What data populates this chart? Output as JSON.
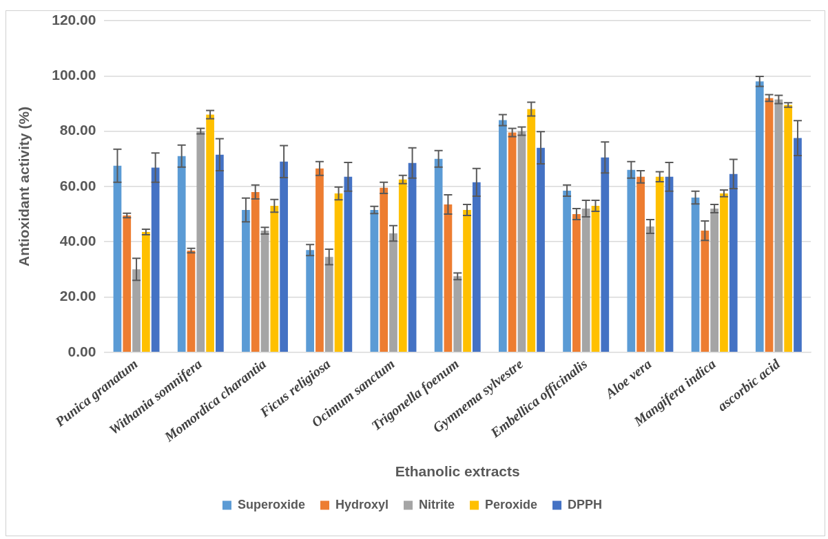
{
  "chart_data": {
    "type": "bar",
    "xlabel": "Ethanolic extracts",
    "ylabel": "Antioxidant activity (%)",
    "categories": [
      "Punica granatum",
      "Withania somnifera",
      "Momordica charantia",
      "Ficus religiosa",
      "Ocimum sanctum",
      "Trigonella foenum",
      "Gymnema sylvestre",
      "Embellica officinalis",
      "Aloe vera",
      "Mangifera indica",
      "ascorbic acid"
    ],
    "series": [
      {
        "name": "Superoxide",
        "color": "#5b9bd5",
        "values": [
          67.5,
          71,
          51.5,
          37,
          51.5,
          70,
          84,
          58.5,
          66,
          56,
          98
        ],
        "errors": [
          6,
          4,
          4.3,
          2,
          1.3,
          3,
          2,
          2,
          3,
          2.3,
          1.8
        ]
      },
      {
        "name": "Hydroxyl",
        "color": "#ed7d31",
        "values": [
          49.5,
          36.8,
          58,
          66.5,
          59.5,
          53.5,
          79.5,
          50,
          63.5,
          44,
          92
        ],
        "errors": [
          0.8,
          0.8,
          2.5,
          2.5,
          2,
          3.5,
          1.5,
          2,
          2.2,
          3.5,
          1.2
        ]
      },
      {
        "name": "Nitrite",
        "color": "#a5a5a5",
        "values": [
          30,
          80,
          44,
          34.5,
          43,
          27.5,
          80,
          52,
          45.5,
          52,
          91.5
        ],
        "errors": [
          4,
          1,
          1.2,
          2.8,
          2.8,
          1.2,
          1.5,
          3,
          2.5,
          1.5,
          1.5
        ]
      },
      {
        "name": "Peroxide",
        "color": "#ffc000",
        "values": [
          43.5,
          86,
          53,
          57.5,
          62.5,
          51.5,
          88,
          53,
          63.5,
          57.5,
          89.5
        ],
        "errors": [
          1,
          1.5,
          2.3,
          2.3,
          1.5,
          2,
          2.5,
          2,
          1.8,
          1.2,
          0.8
        ]
      },
      {
        "name": "DPPH",
        "color": "#4472c4",
        "values": [
          66.8,
          71.5,
          69,
          63.5,
          68.5,
          61.5,
          74,
          70.5,
          63.5,
          64.5,
          77.5
        ],
        "errors": [
          5.3,
          5.8,
          5.8,
          5.2,
          5.5,
          5,
          5.8,
          5.6,
          5.2,
          5.3,
          6.3
        ]
      }
    ],
    "ylim": [
      0,
      120
    ],
    "yticks": [
      {
        "value": 0,
        "label": "0.00"
      },
      {
        "value": 20,
        "label": "20.00"
      },
      {
        "value": 40,
        "label": "40.00"
      },
      {
        "value": 60,
        "label": "60.00"
      },
      {
        "value": 80,
        "label": "80.00"
      },
      {
        "value": 100,
        "label": "100.00"
      },
      {
        "value": 120,
        "label": "120.00"
      }
    ],
    "grid": "y",
    "legend": "bottom"
  }
}
